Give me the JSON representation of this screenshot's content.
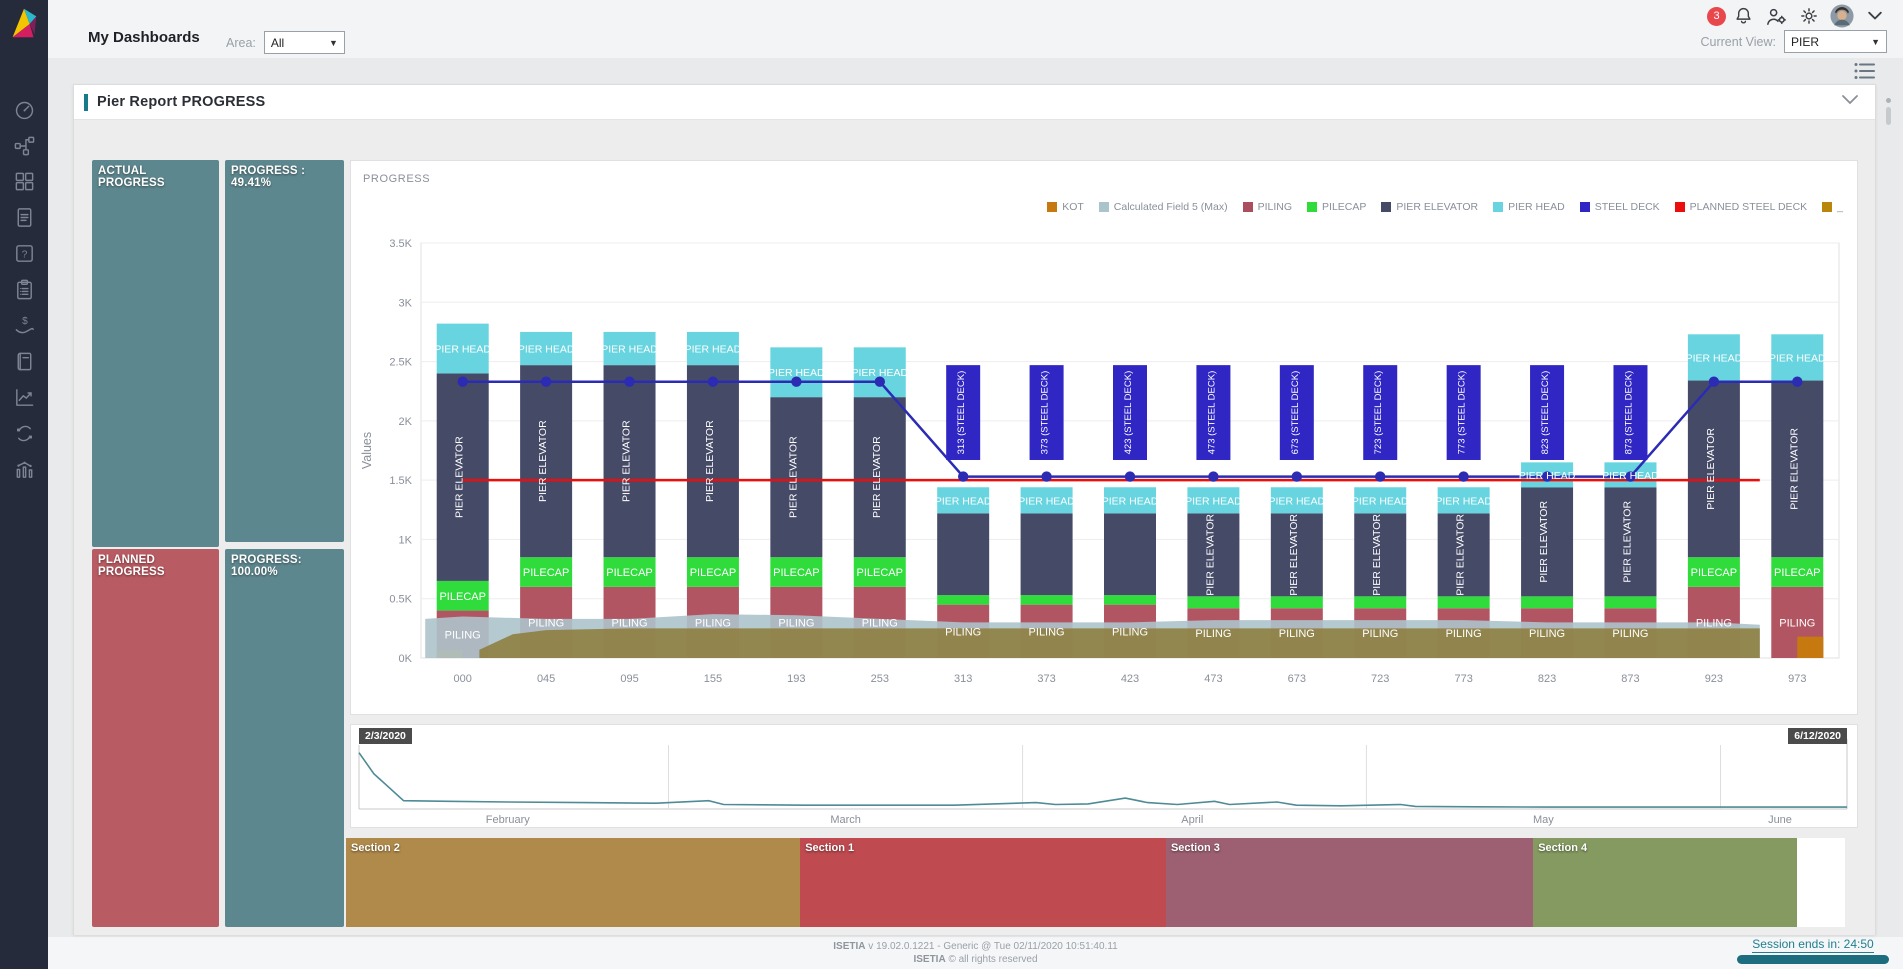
{
  "topbar": {
    "title": "My Dashboards",
    "area_label": "Area:",
    "area_value": "All",
    "current_view_label": "Current View:",
    "current_view_value": "PIER",
    "badge_count": "3"
  },
  "sidebar": {
    "icons": [
      "dashboard-gauge",
      "workflow",
      "grid",
      "document",
      "help",
      "clipboard",
      "cost",
      "book",
      "chart-line",
      "sync",
      "statistics"
    ]
  },
  "panel": {
    "title": "Pier Report PROGRESS"
  },
  "progress_boxes": {
    "actual_label": "ACTUAL PROGRESS",
    "actual_value": "PROGRESS : 49.41%",
    "planned_label": "PLANNED PROGRESS",
    "planned_value": "PROGRESS: 100.00%"
  },
  "chart_data": [
    {
      "type": "bar",
      "subtype": "stacked-columns-with-lines-and-areas",
      "title": "PROGRESS",
      "ylabel": "Values",
      "ylim": [
        0,
        3500
      ],
      "yticks": [
        "0K",
        "0.5K",
        "1K",
        "1.5K",
        "2K",
        "2.5K",
        "3K",
        "3.5K"
      ],
      "grid": true,
      "legend_position": "top-right",
      "categories": [
        "000",
        "045",
        "095",
        "155",
        "193",
        "253",
        "313",
        "373",
        "423",
        "473",
        "673",
        "723",
        "773",
        "823",
        "873",
        "923",
        "973"
      ],
      "series": [
        {
          "name": "PILING",
          "color": "#b25563",
          "values": [
            400,
            600,
            600,
            600,
            600,
            600,
            450,
            450,
            450,
            420,
            420,
            420,
            420,
            420,
            420,
            600,
            600
          ]
        },
        {
          "name": "PILECAP",
          "color": "#2fdc3c",
          "values": [
            250,
            250,
            250,
            250,
            250,
            250,
            80,
            80,
            80,
            100,
            100,
            100,
            100,
            100,
            100,
            250,
            250
          ]
        },
        {
          "name": "PIER ELEVATOR",
          "color": "#454a67",
          "values": [
            1750,
            1620,
            1620,
            1620,
            1350,
            1350,
            690,
            690,
            690,
            700,
            700,
            700,
            700,
            920,
            920,
            1490,
            1490
          ]
        },
        {
          "name": "PIER HEAD",
          "color": "#67d4e0",
          "values": [
            420,
            280,
            280,
            280,
            420,
            420,
            220,
            220,
            220,
            220,
            220,
            220,
            220,
            210,
            210,
            390,
            390
          ]
        }
      ],
      "kot_caps": [
        {
          "cat": "000",
          "value": 70,
          "side": "left",
          "color": "#c5790f"
        },
        {
          "cat": "973",
          "value": 180,
          "side": "right",
          "color": "#c5790f"
        }
      ],
      "floating_bars": {
        "name": "STEEL DECK",
        "color": "#2f26c4",
        "from": 1670,
        "to": 2470,
        "items": [
          {
            "cat": "313",
            "label": "313 (STEEL DECK)"
          },
          {
            "cat": "373",
            "label": "373 (STEEL DECK)"
          },
          {
            "cat": "423",
            "label": "423 (STEEL DECK)"
          },
          {
            "cat": "473",
            "label": "473 (STEEL DECK)"
          },
          {
            "cat": "673",
            "label": "673 (STEEL DECK)"
          },
          {
            "cat": "723",
            "label": "723 (STEEL DECK)"
          },
          {
            "cat": "773",
            "label": "773 (STEEL DECK)"
          },
          {
            "cat": "823",
            "label": "823 (STEEL DECK)"
          },
          {
            "cat": "873",
            "label": "873 (STEEL DECK)"
          }
        ]
      },
      "lines": [
        {
          "name": "PLANNED STEEL DECK",
          "color": "#ec0d0d",
          "marker": false,
          "trim_end": 0.45,
          "values": [
            1500,
            1500,
            1500,
            1500,
            1500,
            1500,
            1500,
            1500,
            1500,
            1500,
            1500,
            1500,
            1500,
            1500,
            1500,
            1500,
            1500
          ]
        },
        {
          "name": "STEEL DECK",
          "color": "#2b2bb4",
          "marker": true,
          "values": [
            2330,
            2330,
            2330,
            2330,
            2330,
            2330,
            1530,
            1530,
            1530,
            1530,
            1530,
            1530,
            1530,
            1530,
            1530,
            2330,
            2330
          ]
        }
      ],
      "areas": [
        {
          "name": "Calculated Field 5 (Max)",
          "color": "#adc3cb",
          "opacity": 0.9,
          "polygon": [
            [
              -0.45,
              0
            ],
            [
              -0.45,
              330
            ],
            [
              0,
              350
            ],
            [
              1,
              330
            ],
            [
              2,
              330
            ],
            [
              3,
              370
            ],
            [
              4,
              360
            ],
            [
              5,
              330
            ],
            [
              6,
              300
            ],
            [
              7,
              300
            ],
            [
              8,
              300
            ],
            [
              9,
              320
            ],
            [
              10,
              320
            ],
            [
              11,
              320
            ],
            [
              12,
              320
            ],
            [
              13,
              300
            ],
            [
              14,
              300
            ],
            [
              15,
              300
            ],
            [
              15.55,
              280
            ],
            [
              15.55,
              0
            ]
          ]
        },
        {
          "name": "KOT",
          "color": "#8d7d3c",
          "opacity": 0.88,
          "polygon": [
            [
              0.2,
              0
            ],
            [
              0.2,
              70
            ],
            [
              0.6,
              200
            ],
            [
              1,
              235
            ],
            [
              2,
              250
            ],
            [
              13,
              250
            ],
            [
              15.55,
              250
            ],
            [
              15.55,
              0
            ]
          ]
        }
      ],
      "legend": [
        {
          "label": "KOT",
          "color": "#c5790f"
        },
        {
          "label": "Calculated Field 5 (Max)",
          "color": "#a9c4cb"
        },
        {
          "label": "PILING",
          "color": "#ab4e5e"
        },
        {
          "label": "PILECAP",
          "color": "#2fdc3c"
        },
        {
          "label": "PIER ELEVATOR",
          "color": "#454a67"
        },
        {
          "label": "PIER HEAD",
          "color": "#67d4e0"
        },
        {
          "label": "STEEL DECK",
          "color": "#2f26c4"
        },
        {
          "label": "PLANNED STEEL DECK",
          "color": "#ec0d0d"
        },
        {
          "label": "_",
          "color": "#b8860b"
        }
      ]
    },
    {
      "type": "line",
      "name": "date-range-selector",
      "start_label": "2/3/2020",
      "end_label": "6/12/2020",
      "color": "#4e8b95",
      "months": [
        {
          "label": "February",
          "x": 0.1
        },
        {
          "label": "March",
          "x": 0.327
        },
        {
          "label": "April",
          "x": 0.56
        },
        {
          "label": "May",
          "x": 0.796
        },
        {
          "label": "June",
          "x": 0.955
        }
      ],
      "month_ticks": [
        0.208,
        0.446,
        0.677,
        0.915
      ],
      "points": [
        [
          0,
          0.88
        ],
        [
          0.01,
          0.55
        ],
        [
          0.03,
          0.13
        ],
        [
          0.06,
          0.12
        ],
        [
          0.1,
          0.11
        ],
        [
          0.15,
          0.1
        ],
        [
          0.2,
          0.09
        ],
        [
          0.235,
          0.13
        ],
        [
          0.245,
          0.07
        ],
        [
          0.3,
          0.06
        ],
        [
          0.35,
          0.06
        ],
        [
          0.4,
          0.06
        ],
        [
          0.455,
          0.1
        ],
        [
          0.468,
          0.07
        ],
        [
          0.49,
          0.08
        ],
        [
          0.515,
          0.17
        ],
        [
          0.53,
          0.1
        ],
        [
          0.55,
          0.07
        ],
        [
          0.575,
          0.12
        ],
        [
          0.585,
          0.07
        ],
        [
          0.617,
          0.11
        ],
        [
          0.63,
          0.06
        ],
        [
          0.66,
          0.05
        ],
        [
          0.7,
          0.07
        ],
        [
          0.71,
          0.04
        ],
        [
          0.75,
          0.035
        ],
        [
          0.8,
          0.03
        ],
        [
          0.85,
          0.03
        ],
        [
          0.9,
          0.03
        ],
        [
          0.95,
          0.03
        ],
        [
          1,
          0.03
        ]
      ]
    },
    {
      "type": "bands",
      "name": "sections",
      "items": [
        {
          "label": "Section 2",
          "color": "#b08a4a",
          "width_pct": 30.3
        },
        {
          "label": "Section 1",
          "color": "#bf4a50",
          "width_pct": 24.4
        },
        {
          "label": "Section 3",
          "color": "#9d6073",
          "width_pct": 24.5
        },
        {
          "label": "Section 4",
          "color": "#849a60",
          "width_pct": 17.6
        },
        {
          "label": "",
          "color": "#ffffff",
          "width_pct": 3.2
        }
      ]
    }
  ],
  "footer": {
    "line1_brand": "ISETIA",
    "line1_rest": " v 19.02.0.1221 - Generic @ Tue 02/11/2020 10:51:40.11",
    "line2_brand": "ISETIA",
    "line2_rest": " © all rights reserved",
    "session": "Session ends in: 24:50"
  }
}
